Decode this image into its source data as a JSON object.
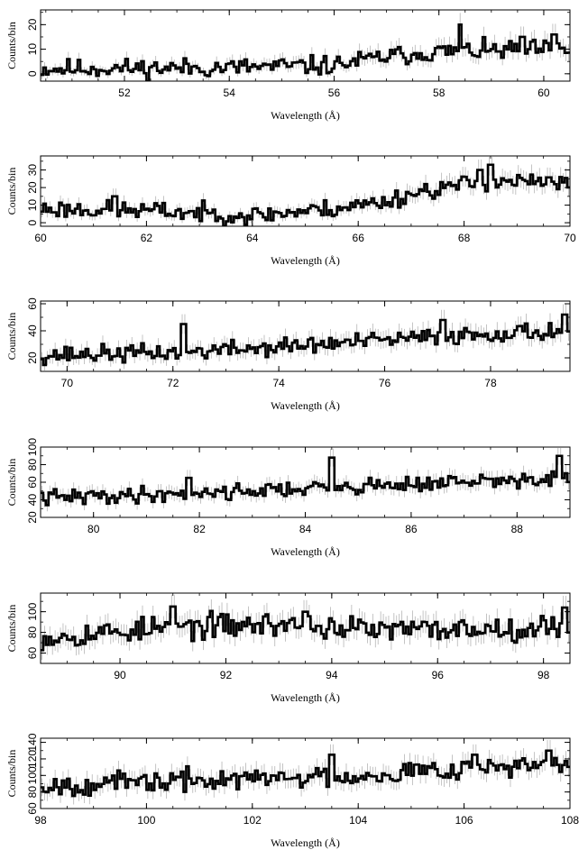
{
  "chart_data": [
    {
      "type": "line",
      "xlabel": "Wavelength (Å)",
      "ylabel": "Counts/bin",
      "xlim": [
        50.4,
        60.5
      ],
      "ylim": [
        -3,
        26
      ],
      "xticks": [
        52,
        54,
        56,
        58,
        60
      ],
      "yticks": [
        0,
        10,
        20
      ],
      "trend": [
        [
          50.4,
          2
        ],
        [
          54,
          2.5
        ],
        [
          56,
          3.5
        ],
        [
          57,
          7
        ],
        [
          58,
          9
        ],
        [
          60.5,
          10
        ]
      ],
      "noise": 3,
      "spikes": [
        [
          58.4,
          20
        ],
        [
          59.6,
          15
        ],
        [
          60.2,
          16
        ]
      ],
      "seed": 11
    },
    {
      "type": "line",
      "xlabel": "Wavelength (Å)",
      "ylabel": "Counts/bin",
      "xlim": [
        60,
        70
      ],
      "ylim": [
        -2,
        38
      ],
      "xticks": [
        60,
        62,
        64,
        66,
        68,
        70
      ],
      "yticks": [
        0,
        10,
        20,
        30
      ],
      "trend": [
        [
          60,
          8
        ],
        [
          62,
          7
        ],
        [
          64,
          4
        ],
        [
          65.5,
          8
        ],
        [
          66.5,
          12
        ],
        [
          67.2,
          18
        ],
        [
          68.5,
          24
        ],
        [
          70,
          22
        ]
      ],
      "noise": 4,
      "spikes": [
        [
          68.5,
          33
        ],
        [
          68.3,
          30
        ],
        [
          61.4,
          15
        ]
      ],
      "seed": 23
    },
    {
      "type": "line",
      "xlabel": "Wavelength (Å)",
      "ylabel": "Counts/bin",
      "xlim": [
        69.5,
        79.5
      ],
      "ylim": [
        10,
        62
      ],
      "xticks": [
        70,
        72,
        74,
        76,
        78
      ],
      "yticks": [
        20,
        40,
        60
      ],
      "trend": [
        [
          69.5,
          22
        ],
        [
          72,
          24
        ],
        [
          74,
          28
        ],
        [
          76,
          33
        ],
        [
          78,
          38
        ],
        [
          79.5,
          40
        ]
      ],
      "noise": 5,
      "spikes": [
        [
          72.2,
          45
        ],
        [
          77.1,
          48
        ],
        [
          79.4,
          52
        ]
      ],
      "seed": 37
    },
    {
      "type": "line",
      "xlabel": "Wavelength (Å)",
      "ylabel": "Counts/bin",
      "xlim": [
        79,
        89
      ],
      "ylim": [
        20,
        100
      ],
      "xticks": [
        80,
        82,
        84,
        86,
        88
      ],
      "yticks": [
        20,
        40,
        60,
        80,
        100
      ],
      "trend": [
        [
          79,
          42
        ],
        [
          82,
          48
        ],
        [
          84,
          53
        ],
        [
          86,
          58
        ],
        [
          89,
          64
        ]
      ],
      "noise": 7,
      "spikes": [
        [
          84.5,
          88
        ],
        [
          88.8,
          90
        ],
        [
          81.8,
          65
        ]
      ],
      "seed": 41
    },
    {
      "type": "line",
      "xlabel": "Wavelength (Å)",
      "ylabel": "Counts/bin",
      "xlim": [
        88.5,
        98.5
      ],
      "ylim": [
        50,
        118
      ],
      "xticks": [
        90,
        92,
        94,
        96,
        98
      ],
      "yticks": [
        60,
        80,
        100
      ],
      "trend": [
        [
          88.5,
          75
        ],
        [
          91,
          85
        ],
        [
          93,
          88
        ],
        [
          95,
          82
        ],
        [
          98.5,
          85
        ]
      ],
      "noise": 9,
      "spikes": [
        [
          91,
          105
        ],
        [
          98.4,
          104
        ],
        [
          93.5,
          100
        ]
      ],
      "seed": 53
    },
    {
      "type": "line",
      "xlabel": "Wavelength (Å)",
      "ylabel": "Counts/bin",
      "xlim": [
        98,
        108
      ],
      "ylim": [
        60,
        145
      ],
      "xticks": [
        98,
        100,
        102,
        104,
        106,
        108
      ],
      "yticks": [
        60,
        80,
        100,
        120,
        140
      ],
      "trend": [
        [
          98,
          88
        ],
        [
          100,
          92
        ],
        [
          102,
          96
        ],
        [
          104,
          100
        ],
        [
          106,
          110
        ],
        [
          108,
          112
        ]
      ],
      "noise": 10,
      "spikes": [
        [
          106.2,
          125
        ],
        [
          107.6,
          130
        ],
        [
          103.5,
          125
        ]
      ],
      "seed": 67
    }
  ]
}
